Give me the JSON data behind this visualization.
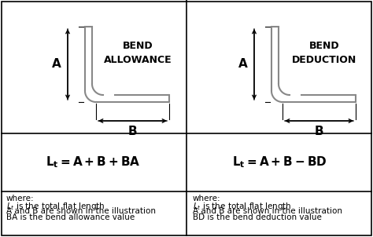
{
  "background_color": "#ffffff",
  "left_title": "BEND\nALLOWANCE",
  "right_title": "BEND\nDEDUCTION",
  "where_left": "where:\nLₜ is the total flat length\nA and B are shown in the illustration\nBA is the bend allowance value",
  "where_right": "where:\nLₜ is the total flat length\nA and B are shown in the illustration\nBD is the bend deduction value",
  "line_color": "#888888",
  "text_color": "#000000",
  "lw_bracket": 1.5,
  "lw_border": 1.2,
  "lw_arrow": 1.0
}
